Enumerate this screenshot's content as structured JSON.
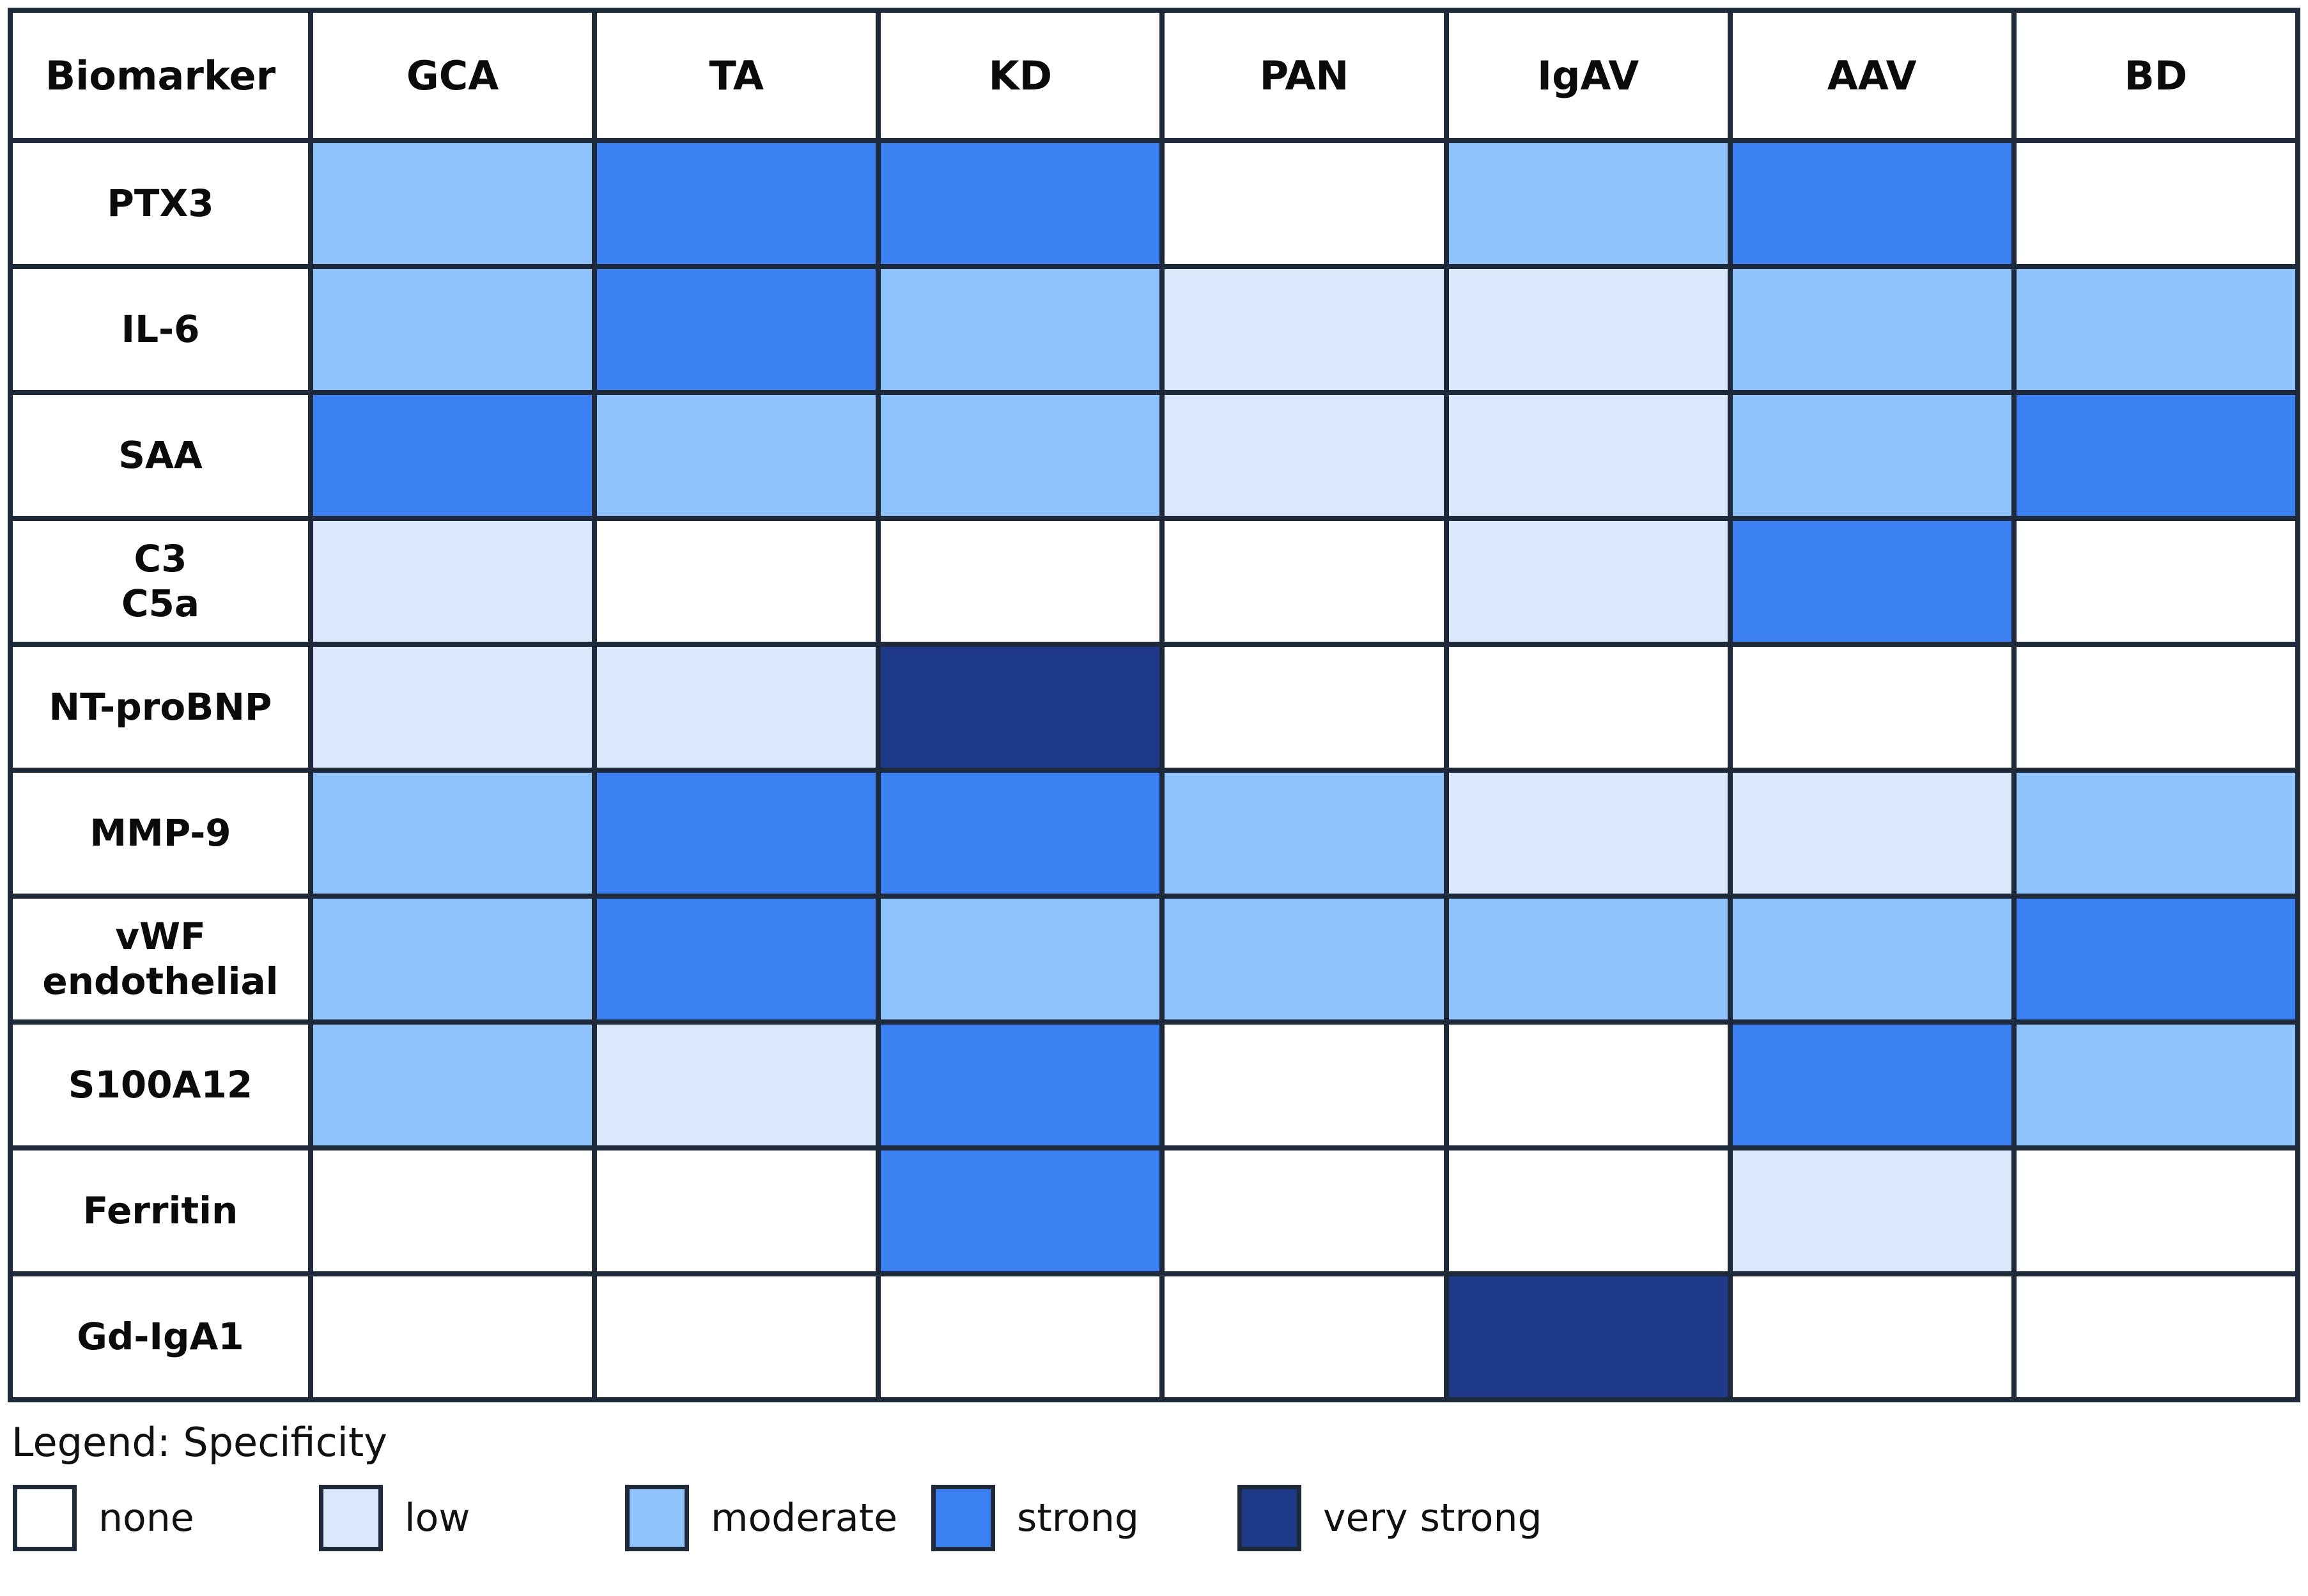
{
  "chart_data": {
    "type": "heatmap",
    "corner_label": "Biomarker",
    "columns": [
      "GCA",
      "TA",
      "KD",
      "PAN",
      "IgAV",
      "AAV",
      "BD"
    ],
    "rows": [
      {
        "label": "PTX3",
        "values": [
          "moderate",
          "strong",
          "strong",
          "none",
          "moderate",
          "strong",
          "none"
        ]
      },
      {
        "label": "IL-6",
        "values": [
          "moderate",
          "strong",
          "moderate",
          "low",
          "low",
          "moderate",
          "moderate"
        ]
      },
      {
        "label": "SAA",
        "values": [
          "strong",
          "moderate",
          "moderate",
          "low",
          "low",
          "moderate",
          "strong"
        ]
      },
      {
        "label": "C3\nC5a",
        "values": [
          "low",
          "none",
          "none",
          "none",
          "low",
          "strong",
          "none"
        ]
      },
      {
        "label": "NT-proBNP",
        "values": [
          "low",
          "low",
          "very_strong",
          "none",
          "none",
          "none",
          "none"
        ]
      },
      {
        "label": "MMP-9",
        "values": [
          "moderate",
          "strong",
          "strong",
          "moderate",
          "low",
          "low",
          "moderate"
        ]
      },
      {
        "label": "vWF\nendothelial",
        "values": [
          "moderate",
          "strong",
          "moderate",
          "moderate",
          "moderate",
          "moderate",
          "strong"
        ]
      },
      {
        "label": "S100A12",
        "values": [
          "moderate",
          "low",
          "strong",
          "none",
          "none",
          "strong",
          "moderate"
        ]
      },
      {
        "label": "Ferritin",
        "values": [
          "none",
          "none",
          "strong",
          "none",
          "none",
          "low",
          "none"
        ]
      },
      {
        "label": "Gd-IgA1",
        "values": [
          "none",
          "none",
          "none",
          "none",
          "very_strong",
          "none",
          "none"
        ]
      }
    ],
    "levels": [
      "none",
      "low",
      "moderate",
      "strong",
      "very_strong"
    ],
    "colors": {
      "none": "#ffffff",
      "low": "#dbe8fc",
      "moderate": "#8ec4fb",
      "strong": "#3a80f2",
      "very_strong": "#1f3a89",
      "grid_border": "#1e2a3a"
    },
    "legend": {
      "title": "Legend: Specificity",
      "position": "bottom",
      "items": [
        {
          "label": "none",
          "level": "none"
        },
        {
          "label": "low",
          "level": "low"
        },
        {
          "label": "moderate",
          "level": "moderate"
        },
        {
          "label": "strong",
          "level": "strong"
        },
        {
          "label": "very strong",
          "level": "very_strong"
        }
      ]
    }
  }
}
